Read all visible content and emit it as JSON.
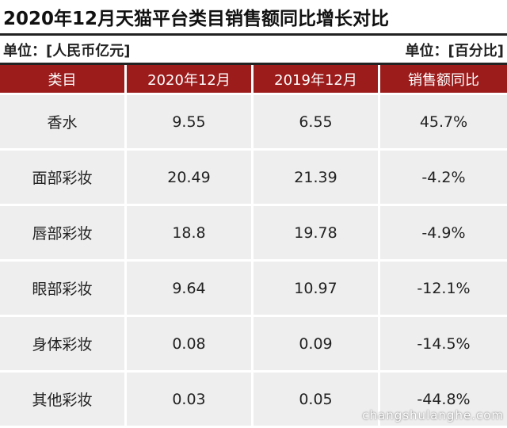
{
  "header": {
    "title": "2020年12月天猫平台类目销售额同比增长对比",
    "unit_left": "单位：[人民币亿元]",
    "unit_right": "单位：[百分比]"
  },
  "table": {
    "columns": [
      "类目",
      "2020年12月",
      "2019年12月",
      "销售额同比"
    ],
    "rows": [
      [
        "香水",
        "9.55",
        "6.55",
        "45.7%"
      ],
      [
        "面部彩妆",
        "20.49",
        "21.39",
        "-4.2%"
      ],
      [
        "唇部彩妆",
        "18.8",
        "19.78",
        "-4.9%"
      ],
      [
        "眼部彩妆",
        "9.64",
        "10.97",
        "-12.1%"
      ],
      [
        "身体彩妆",
        "0.08",
        "0.09",
        "-14.5%"
      ],
      [
        "其他彩妆",
        "0.03",
        "0.05",
        "-44.8%"
      ]
    ]
  },
  "watermark": "changshulanghe.com"
}
